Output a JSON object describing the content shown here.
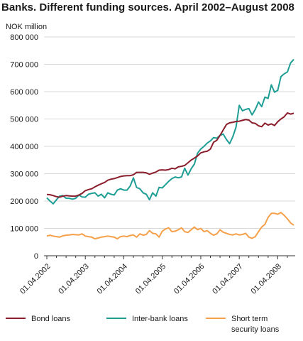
{
  "title": "Banks. Different funding sources. April 2002–August 2008",
  "unit_label": "NOK million",
  "chart_data": {
    "type": "line",
    "title": "Banks. Different funding sources. April 2002–August 2008",
    "ylabel": "NOK million",
    "xlabel": "",
    "ylim": [
      0,
      800000
    ],
    "yticks": [
      0,
      100000,
      200000,
      300000,
      400000,
      500000,
      600000,
      700000,
      800000
    ],
    "ytick_labels": [
      "0",
      "100 000",
      "200 000",
      "300 000",
      "400 000",
      "500 000",
      "600 000",
      "700 000",
      "800 000"
    ],
    "xtick_labels": [
      "01.04.2002",
      "01.04.2003",
      "01.04.2004",
      "01.04.2005",
      "01.04.2006",
      "01.04.2007",
      "01.04.2008"
    ],
    "x_start": "2002-04",
    "x_end": "2008-08",
    "grid": true,
    "legend_position": "bottom",
    "series": [
      {
        "name": "Bond loans",
        "color": "#8b1e2d",
        "values": [
          224000,
          223000,
          220000,
          216000,
          214000,
          218000,
          220000,
          219000,
          218000,
          218000,
          222000,
          228000,
          238000,
          242000,
          245000,
          252000,
          258000,
          263000,
          268000,
          276000,
          280000,
          282000,
          286000,
          290000,
          292000,
          293000,
          293000,
          296000,
          305000,
          305000,
          305000,
          303000,
          298000,
          302000,
          306000,
          313000,
          314000,
          313000,
          315000,
          320000,
          318000,
          325000,
          327000,
          330000,
          340000,
          350000,
          357000,
          365000,
          376000,
          380000,
          382000,
          390000,
          415000,
          422000,
          440000,
          460000,
          480000,
          486000,
          488000,
          491000,
          492000,
          495000,
          498000,
          496000,
          486000,
          484000,
          475000,
          472000,
          485000,
          478000,
          482000,
          476000,
          490000,
          500000,
          508000,
          522000,
          518000,
          521000
        ]
      },
      {
        "name": "Inter-bank loans",
        "color": "#1e9e94",
        "values": [
          212000,
          200000,
          190000,
          205000,
          218000,
          220000,
          210000,
          210000,
          207000,
          210000,
          222000,
          215000,
          214000,
          225000,
          228000,
          230000,
          218000,
          225000,
          212000,
          230000,
          225000,
          222000,
          240000,
          245000,
          240000,
          240000,
          255000,
          285000,
          250000,
          245000,
          230000,
          225000,
          205000,
          230000,
          218000,
          250000,
          248000,
          260000,
          272000,
          282000,
          288000,
          285000,
          288000,
          320000,
          295000,
          318000,
          335000,
          375000,
          390000,
          400000,
          412000,
          420000,
          432000,
          430000,
          440000,
          445000,
          425000,
          410000,
          435000,
          470000,
          550000,
          530000,
          535000,
          538000,
          515000,
          535000,
          562000,
          545000,
          580000,
          575000,
          625000,
          598000,
          605000,
          655000,
          665000,
          672000,
          705000,
          718000
        ]
      },
      {
        "name": "Short term security loans",
        "color": "#f5a04a",
        "values": [
          72000,
          75000,
          72000,
          70000,
          68000,
          73000,
          75000,
          76000,
          78000,
          77000,
          76000,
          80000,
          72000,
          70000,
          68000,
          62000,
          65000,
          68000,
          70000,
          72000,
          70000,
          68000,
          62000,
          70000,
          72000,
          70000,
          74000,
          76000,
          68000,
          80000,
          75000,
          78000,
          92000,
          82000,
          80000,
          68000,
          90000,
          98000,
          102000,
          88000,
          90000,
          95000,
          102000,
          88000,
          85000,
          95000,
          105000,
          95000,
          100000,
          88000,
          92000,
          82000,
          75000,
          80000,
          95000,
          86000,
          82000,
          78000,
          76000,
          80000,
          76000,
          78000,
          82000,
          68000,
          64000,
          70000,
          88000,
          105000,
          115000,
          140000,
          155000,
          155000,
          152000,
          158000,
          148000,
          135000,
          120000,
          112000
        ]
      }
    ]
  }
}
